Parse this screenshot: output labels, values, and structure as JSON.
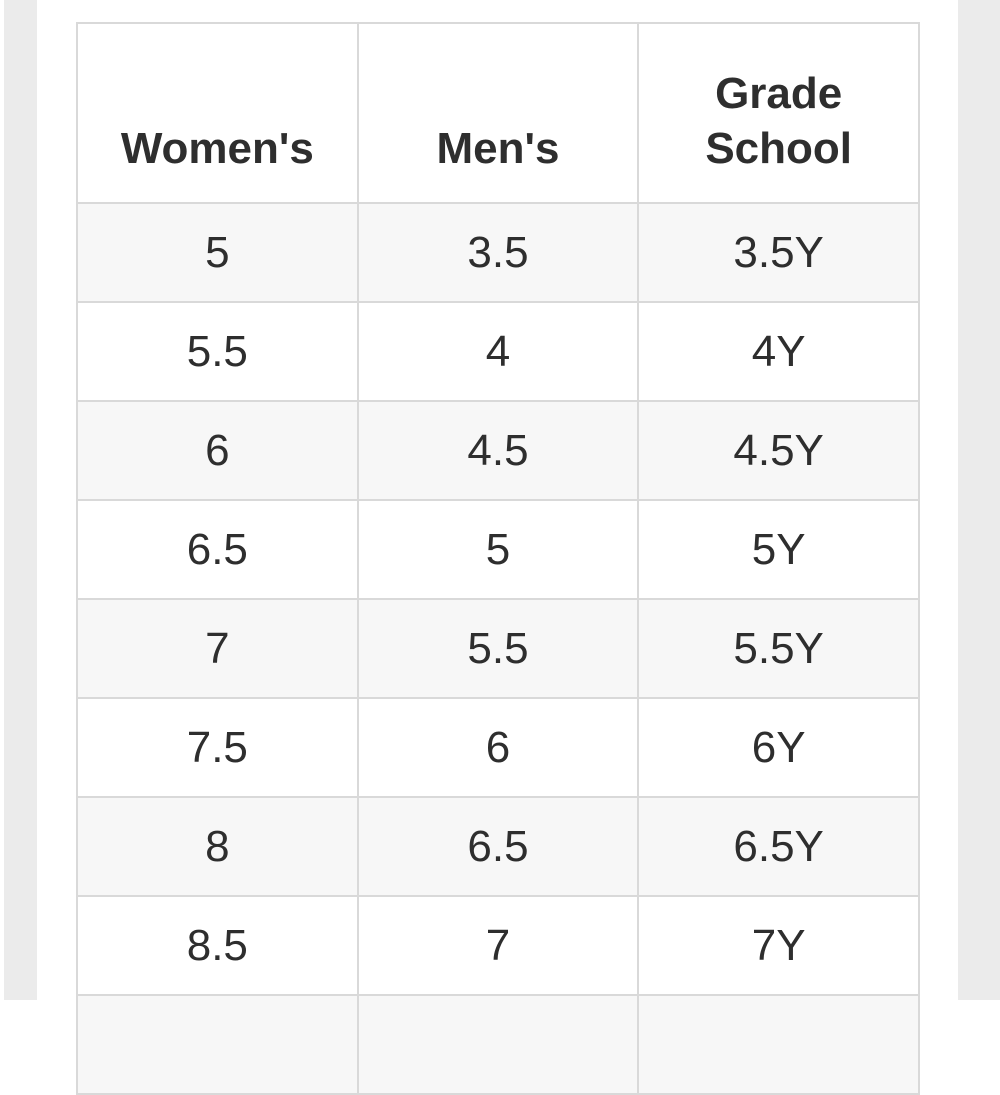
{
  "theme": {
    "gutter_color": "#ebebeb",
    "row_alt_color": "#f7f7f7",
    "border_color": "#d9d9d9",
    "text_color": "#2e2e2e",
    "cell_background": "#ffffff"
  },
  "table": {
    "columns": [
      {
        "label": "Women's"
      },
      {
        "label": "Men's"
      },
      {
        "label": "Grade School"
      }
    ],
    "rows": [
      [
        "5",
        "3.5",
        "3.5Y"
      ],
      [
        "5.5",
        "4",
        "4Y"
      ],
      [
        "6",
        "4.5",
        "4.5Y"
      ],
      [
        "6.5",
        "5",
        "5Y"
      ],
      [
        "7",
        "5.5",
        "5.5Y"
      ],
      [
        "7.5",
        "6",
        "6Y"
      ],
      [
        "8",
        "6.5",
        "6.5Y"
      ],
      [
        "8.5",
        "7",
        "7Y"
      ]
    ],
    "partial_row": [
      "",
      "",
      ""
    ]
  }
}
